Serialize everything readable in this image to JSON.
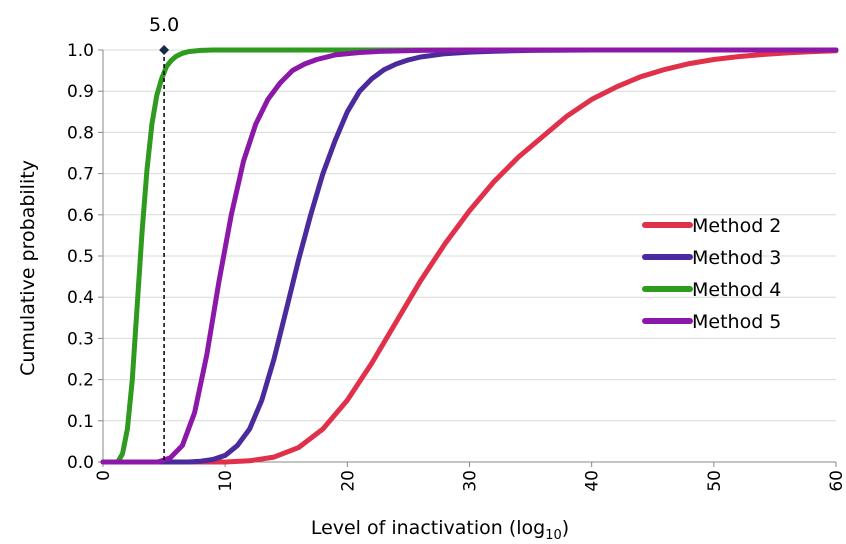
{
  "chart_data": {
    "type": "line",
    "xlabel": "Level of inactivation (log",
    "xlabel_sub": "10",
    "xlabel_end": ")",
    "ylabel": "Cumulative probability",
    "xlim": [
      0,
      60
    ],
    "ylim": [
      0,
      1
    ],
    "x_ticks": [
      "0",
      "10",
      "20",
      "30",
      "40",
      "50",
      "60"
    ],
    "y_ticks": [
      "0.0",
      "0.1",
      "0.2",
      "0.3",
      "0.4",
      "0.5",
      "0.6",
      "0.7",
      "0.8",
      "0.9",
      "1.0"
    ],
    "grid": "horizontal",
    "legend_position": "right",
    "annotation": {
      "label": "5.0",
      "x": 5.0,
      "y": 1.0
    },
    "series": [
      {
        "name": "Method 2",
        "color": "#e0304a",
        "x": [
          0,
          10,
          12,
          14,
          16,
          18,
          20,
          22,
          24,
          26,
          28,
          30,
          32,
          34,
          36,
          38,
          40,
          42,
          44,
          46,
          48,
          50,
          52,
          54,
          56,
          58,
          60
        ],
        "y": [
          0.0,
          0.0,
          0.003,
          0.012,
          0.035,
          0.08,
          0.15,
          0.24,
          0.34,
          0.44,
          0.53,
          0.61,
          0.68,
          0.74,
          0.79,
          0.84,
          0.88,
          0.91,
          0.935,
          0.953,
          0.967,
          0.977,
          0.984,
          0.989,
          0.993,
          0.996,
          0.998
        ]
      },
      {
        "name": "Method 3",
        "color": "#4b2a9e",
        "x": [
          0,
          7,
          8,
          9,
          10,
          11,
          12,
          13,
          14,
          15,
          16,
          17,
          18,
          19,
          20,
          21,
          22,
          23,
          24,
          25,
          26,
          28,
          30,
          32,
          35,
          40,
          60
        ],
        "y": [
          0.0,
          0.0,
          0.002,
          0.006,
          0.016,
          0.04,
          0.08,
          0.15,
          0.25,
          0.37,
          0.49,
          0.6,
          0.7,
          0.78,
          0.85,
          0.9,
          0.93,
          0.952,
          0.966,
          0.976,
          0.983,
          0.991,
          0.995,
          0.997,
          0.999,
          1.0,
          1.0
        ]
      },
      {
        "name": "Method 4",
        "color": "#2e9a1e",
        "x": [
          0,
          1.2,
          1.6,
          2.0,
          2.4,
          2.8,
          3.2,
          3.6,
          4.0,
          4.4,
          4.8,
          5.2,
          5.6,
          6.0,
          6.5,
          7.0,
          8.0,
          9.0,
          60
        ],
        "y": [
          0.0,
          0.0,
          0.02,
          0.08,
          0.2,
          0.38,
          0.56,
          0.71,
          0.82,
          0.89,
          0.93,
          0.96,
          0.975,
          0.985,
          0.992,
          0.996,
          0.999,
          1.0,
          1.0
        ]
      },
      {
        "name": "Method 5",
        "color": "#8b18a8",
        "x": [
          0,
          4.5,
          5.5,
          6.5,
          7.5,
          8.5,
          9.5,
          10.5,
          11.5,
          12.5,
          13.5,
          14.5,
          15.5,
          16.5,
          17.5,
          19,
          21,
          23,
          26,
          30,
          60
        ],
        "y": [
          0.0,
          0.0,
          0.01,
          0.04,
          0.12,
          0.26,
          0.44,
          0.6,
          0.73,
          0.82,
          0.88,
          0.92,
          0.95,
          0.966,
          0.977,
          0.988,
          0.994,
          0.997,
          0.999,
          1.0,
          1.0
        ]
      }
    ]
  }
}
